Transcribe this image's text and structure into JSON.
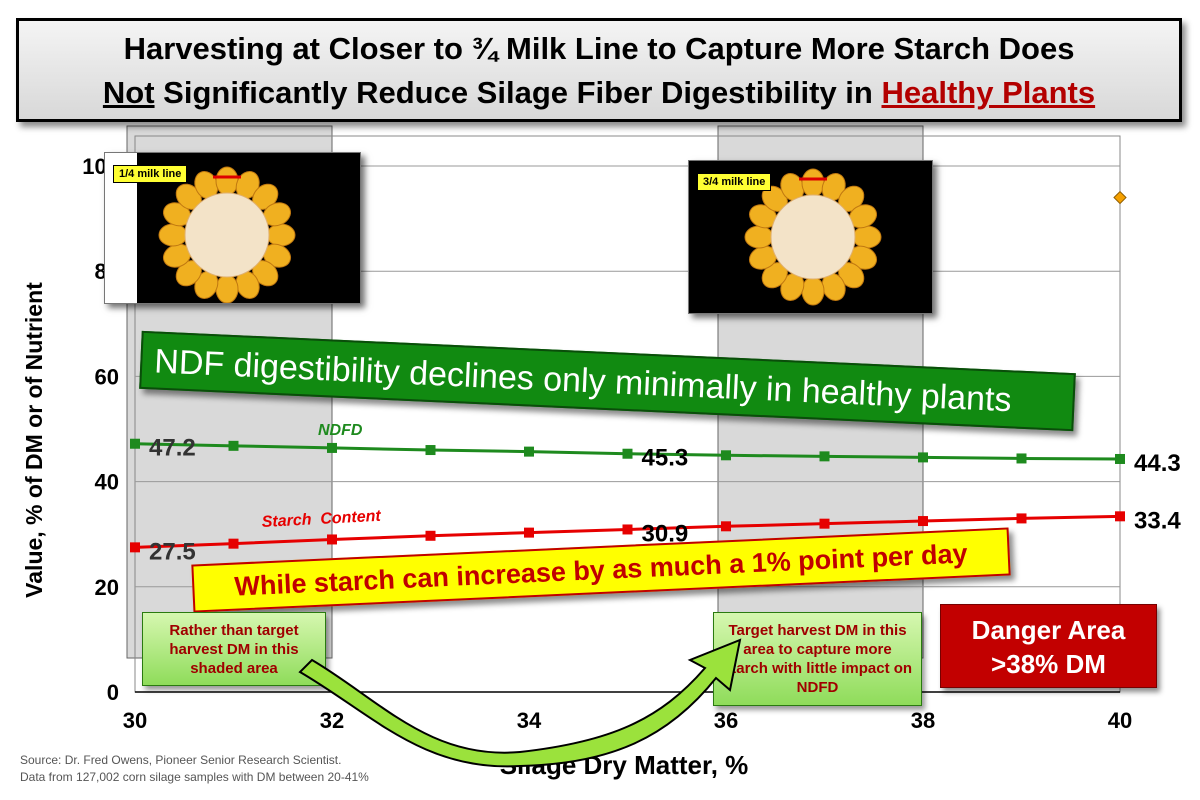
{
  "title": {
    "line1": "Harvesting at Closer to ¾ Milk Line to Capture More Starch Does",
    "line2_underlined": "Not",
    "line2_middle": " Significantly Reduce Silage Fiber Digestibility in ",
    "line2_red": "Healthy Plants"
  },
  "chart_data": {
    "type": "line",
    "xlabel": "Silage Dry Matter, %",
    "ylabel": "Value, % of DM or of Nutrient",
    "xlim": [
      30,
      40
    ],
    "ylim": [
      0,
      100
    ],
    "x_ticks": [
      30,
      32,
      34,
      36,
      38,
      40
    ],
    "y_ticks": [
      0,
      20,
      40,
      60,
      80,
      100
    ],
    "y_tick_labels": [
      "0",
      "20",
      "40",
      "60",
      "80",
      "100"
    ],
    "grid": "horizontal",
    "x": [
      30,
      31,
      32,
      33,
      34,
      35,
      36,
      37,
      38,
      39,
      40
    ],
    "series": [
      {
        "name": "NDFD",
        "color": "#1e8a1e",
        "values": [
          47.2,
          46.8,
          46.4,
          46.0,
          45.7,
          45.3,
          45.0,
          44.8,
          44.6,
          44.4,
          44.3
        ]
      },
      {
        "name": "Starch  Content",
        "color": "#e60000",
        "values": [
          27.5,
          28.2,
          29.0,
          29.7,
          30.3,
          30.9,
          31.5,
          32.0,
          32.5,
          33.0,
          33.4
        ]
      }
    ],
    "data_labels": [
      {
        "x": 30,
        "y": 47.2,
        "text": "47.2"
      },
      {
        "x": 35,
        "y": 45.3,
        "text": "45.3"
      },
      {
        "x": 40,
        "y": 44.3,
        "text": "44.3"
      },
      {
        "x": 30,
        "y": 27.5,
        "text": "27.5"
      },
      {
        "x": 35,
        "y": 30.9,
        "text": "30.9"
      },
      {
        "x": 40,
        "y": 33.4,
        "text": "33.4"
      }
    ],
    "shaded_ranges": [
      [
        30,
        32
      ],
      [
        36,
        38
      ]
    ],
    "extra_point": {
      "x": 40,
      "y": 94,
      "color": "#f5a000"
    }
  },
  "images": {
    "left_label": "1/4 milk line",
    "right_label": "3/4 milk line"
  },
  "banners": {
    "green": "NDF digestibility declines only minimally in healthy plants",
    "yellow": "While starch can increase by as much a 1% point per day"
  },
  "notes": {
    "left": "Rather than target harvest  DM in this shaded area",
    "right": "Target harvest DM in this area to capture more starch with little impact on NDFD"
  },
  "danger": {
    "line1": "Danger Area",
    "line2": ">38% DM"
  },
  "source": {
    "line1": "Source:  Dr. Fred Owens, Pioneer Senior Research Scientist.",
    "line2": "Data from 127,002 corn silage samples with DM between 20-41%"
  },
  "colors": {
    "ndfd": "#1e8a1e",
    "starch": "#e60000",
    "banner_green": "#118a11",
    "banner_yellow": "#ffff00",
    "danger": "#c20000"
  }
}
